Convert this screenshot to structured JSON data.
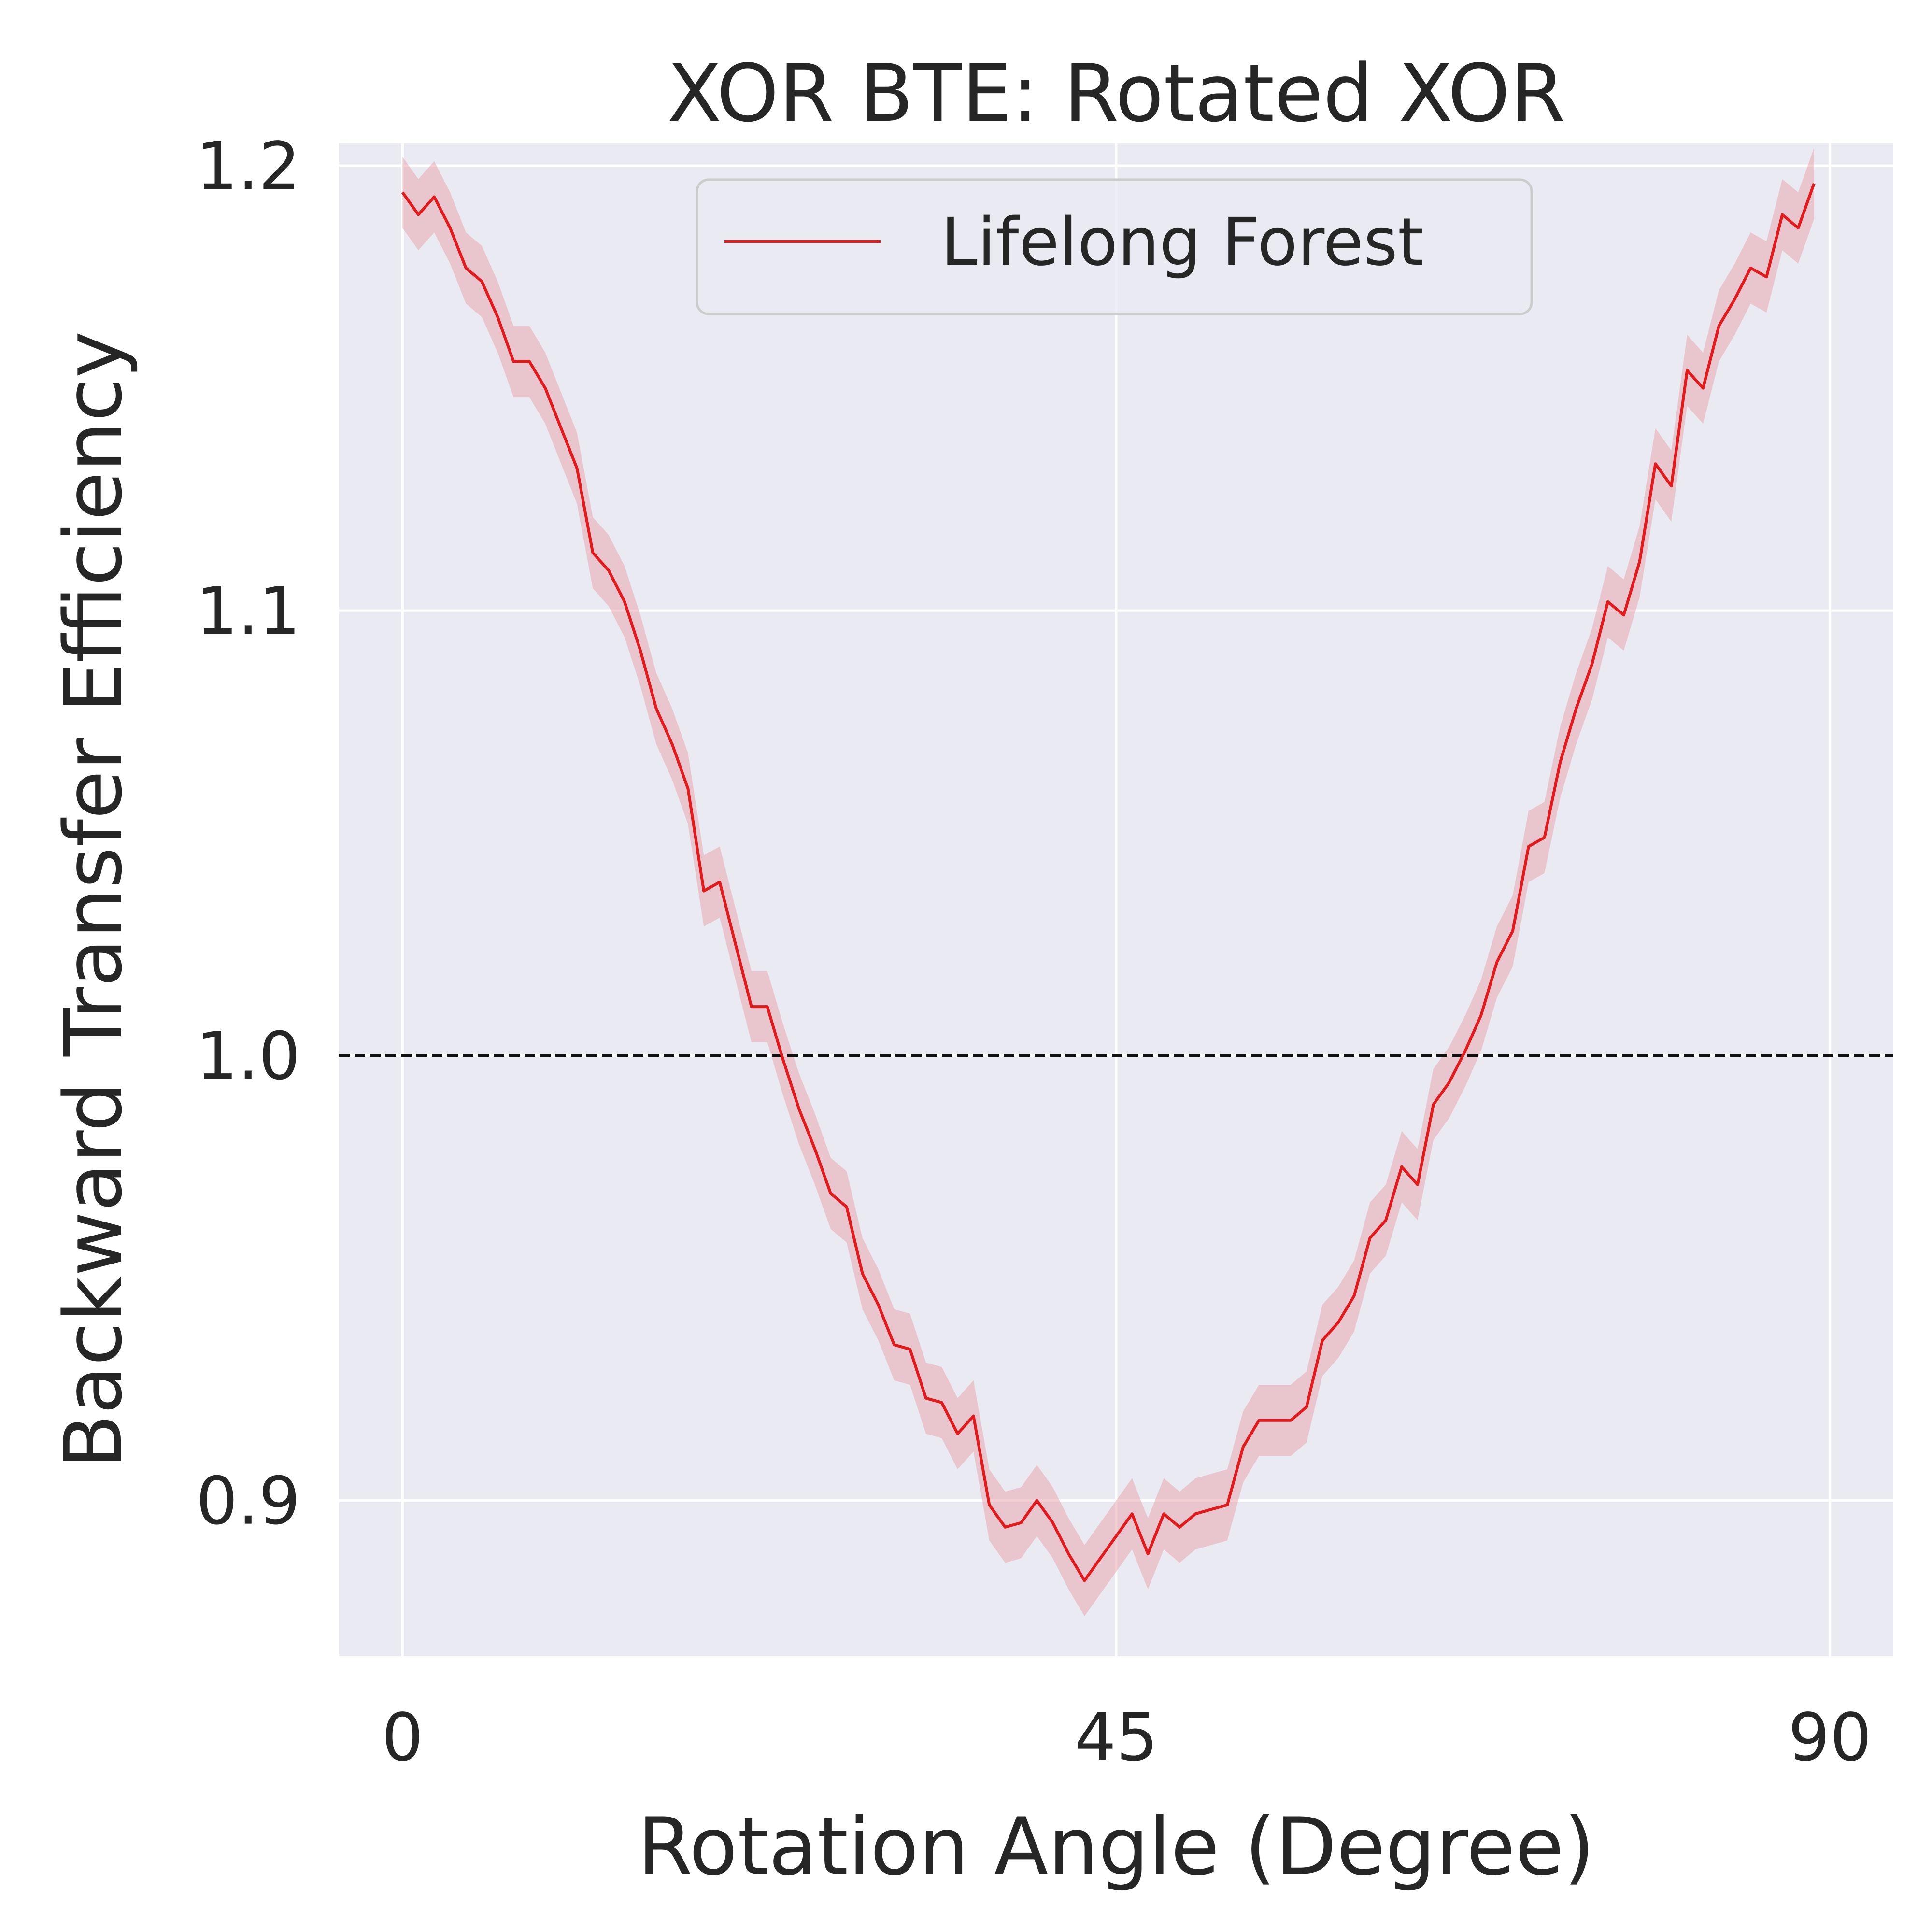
{
  "chart_data": {
    "type": "line",
    "title": "XOR BTE: Rotated XOR",
    "xlabel": "Rotation Angle (Degree)",
    "ylabel": "Backward Transfer Efficiency",
    "xlim": [
      -4,
      94
    ],
    "ylim": [
      0.865,
      1.205
    ],
    "xticks": [
      0,
      45,
      90
    ],
    "xtick_labels": [
      "0",
      "45",
      "90"
    ],
    "yticks": [
      0.9,
      1.0,
      1.1,
      1.2
    ],
    "ytick_labels": [
      "0.9",
      "1.0",
      "1.1",
      "1.2"
    ],
    "grid": true,
    "legend_position": "top-center",
    "reference_line": {
      "y": 1.0,
      "style": "dashed",
      "color": "#111111"
    },
    "band_color": "#e8a0a8",
    "series": [
      {
        "name": "Lifelong Forest",
        "color": "#e31a1c",
        "x": [
          0,
          1,
          2,
          3,
          4,
          5,
          6,
          7,
          8,
          9,
          10,
          11,
          12,
          13,
          14,
          15,
          16,
          17,
          18,
          19,
          20,
          21,
          22,
          23,
          24,
          25,
          26,
          27,
          28,
          29,
          30,
          31,
          32,
          33,
          34,
          35,
          36,
          37,
          38,
          39,
          40,
          41,
          42,
          43,
          44,
          45,
          46,
          47,
          48,
          49,
          50,
          51,
          52,
          53,
          54,
          55,
          56,
          57,
          58,
          59,
          60,
          61,
          62,
          63,
          64,
          65,
          66,
          67,
          68,
          69,
          70,
          71,
          72,
          73,
          74,
          75,
          76,
          77,
          78,
          79,
          80,
          81,
          82,
          83,
          84,
          85,
          86,
          87,
          88,
          89
        ],
        "y": [
          1.194,
          1.189,
          1.193,
          1.186,
          1.177,
          1.174,
          1.166,
          1.156,
          1.156,
          1.15,
          1.141,
          1.132,
          1.113,
          1.109,
          1.102,
          1.091,
          1.078,
          1.07,
          1.06,
          1.037,
          1.039,
          1.025,
          1.011,
          1.011,
          0.999,
          0.988,
          0.979,
          0.969,
          0.966,
          0.951,
          0.944,
          0.935,
          0.934,
          0.923,
          0.922,
          0.915,
          0.919,
          0.899,
          0.894,
          0.895,
          0.9,
          0.895,
          0.888,
          0.882,
          0.887,
          0.892,
          0.897,
          0.888,
          0.897,
          0.894,
          0.897,
          0.898,
          0.899,
          0.912,
          0.918,
          0.918,
          0.918,
          0.921,
          0.936,
          0.94,
          0.946,
          0.959,
          0.963,
          0.975,
          0.971,
          0.989,
          0.994,
          1.001,
          1.009,
          1.021,
          1.028,
          1.047,
          1.049,
          1.066,
          1.078,
          1.088,
          1.102,
          1.099,
          1.111,
          1.133,
          1.128,
          1.154,
          1.15,
          1.164,
          1.17,
          1.177,
          1.175,
          1.189,
          1.186,
          1.196
        ],
        "band_halfwidth": 0.008
      }
    ]
  }
}
